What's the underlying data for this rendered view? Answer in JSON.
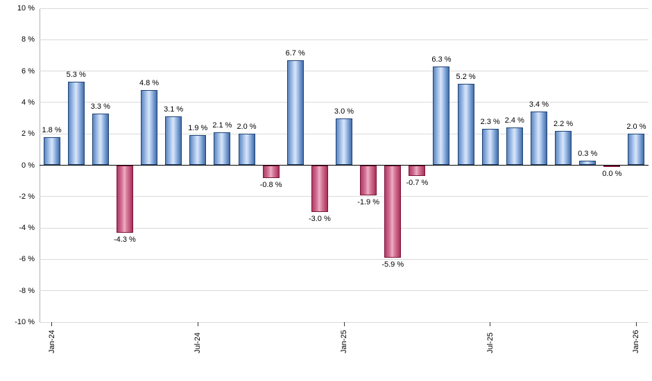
{
  "chart_data": {
    "type": "bar",
    "title": "",
    "xlabel": "",
    "ylabel": "",
    "ylim": [
      -10,
      10
    ],
    "grid": true,
    "legend": "none",
    "y_tick_labels": [
      "10 %",
      "8 %",
      "6 %",
      "4 %",
      "2 %",
      "0 %",
      "-2 %",
      "-4 %",
      "-6 %",
      "-8 %",
      "-10 %"
    ],
    "x_tick_labels": [
      "Jan-24",
      "Jul-24",
      "Jan-25",
      "Jul-25",
      "Jan-26"
    ],
    "x_tick_bar_indices": [
      0,
      6,
      12,
      18,
      24
    ],
    "bars": [
      {
        "value": 1.8,
        "label": "1.8 %",
        "color": "positive"
      },
      {
        "value": 5.3,
        "label": "5.3 %",
        "color": "positive"
      },
      {
        "value": 3.3,
        "label": "3.3 %",
        "color": "positive"
      },
      {
        "value": -4.3,
        "label": "-4.3 %",
        "color": "negative"
      },
      {
        "value": 4.8,
        "label": "4.8 %",
        "color": "positive"
      },
      {
        "value": 3.1,
        "label": "3.1 %",
        "color": "positive"
      },
      {
        "value": 1.9,
        "label": "1.9 %",
        "color": "positive"
      },
      {
        "value": 2.1,
        "label": "2.1 %",
        "color": "positive"
      },
      {
        "value": 2.0,
        "label": "2.0 %",
        "color": "positive"
      },
      {
        "value": -0.8,
        "label": "-0.8 %",
        "color": "negative"
      },
      {
        "value": 6.7,
        "label": "6.7 %",
        "color": "positive"
      },
      {
        "value": -3.0,
        "label": "-3.0 %",
        "color": "negative"
      },
      {
        "value": 3.0,
        "label": "3.0 %",
        "color": "positive"
      },
      {
        "value": -1.9,
        "label": "-1.9 %",
        "color": "negative"
      },
      {
        "value": -5.9,
        "label": "-5.9 %",
        "color": "negative"
      },
      {
        "value": -0.7,
        "label": "-0.7 %",
        "color": "negative"
      },
      {
        "value": 6.3,
        "label": "6.3 %",
        "color": "positive"
      },
      {
        "value": 5.2,
        "label": "5.2 %",
        "color": "positive"
      },
      {
        "value": 2.3,
        "label": "2.3 %",
        "color": "positive"
      },
      {
        "value": 2.4,
        "label": "2.4 %",
        "color": "positive"
      },
      {
        "value": 3.4,
        "label": "3.4 %",
        "color": "positive"
      },
      {
        "value": 2.2,
        "label": "2.2 %",
        "color": "positive"
      },
      {
        "value": 0.3,
        "label": "0.3 %",
        "color": "positive"
      },
      {
        "value": 0.0,
        "label": "0.0 %",
        "color": "negative"
      },
      {
        "value": 2.0,
        "label": "2.0 %",
        "color": "positive"
      }
    ],
    "colors": {
      "positive_bar": "#94b4e1",
      "positive_border": "#1e4273",
      "negative_bar": "#c8527a",
      "negative_border": "#7c1238",
      "grid": "#d9d9d9",
      "zero_line": "#000000",
      "axis": "#b0b0b0",
      "background": "#ffffff",
      "text": "#000000"
    }
  }
}
